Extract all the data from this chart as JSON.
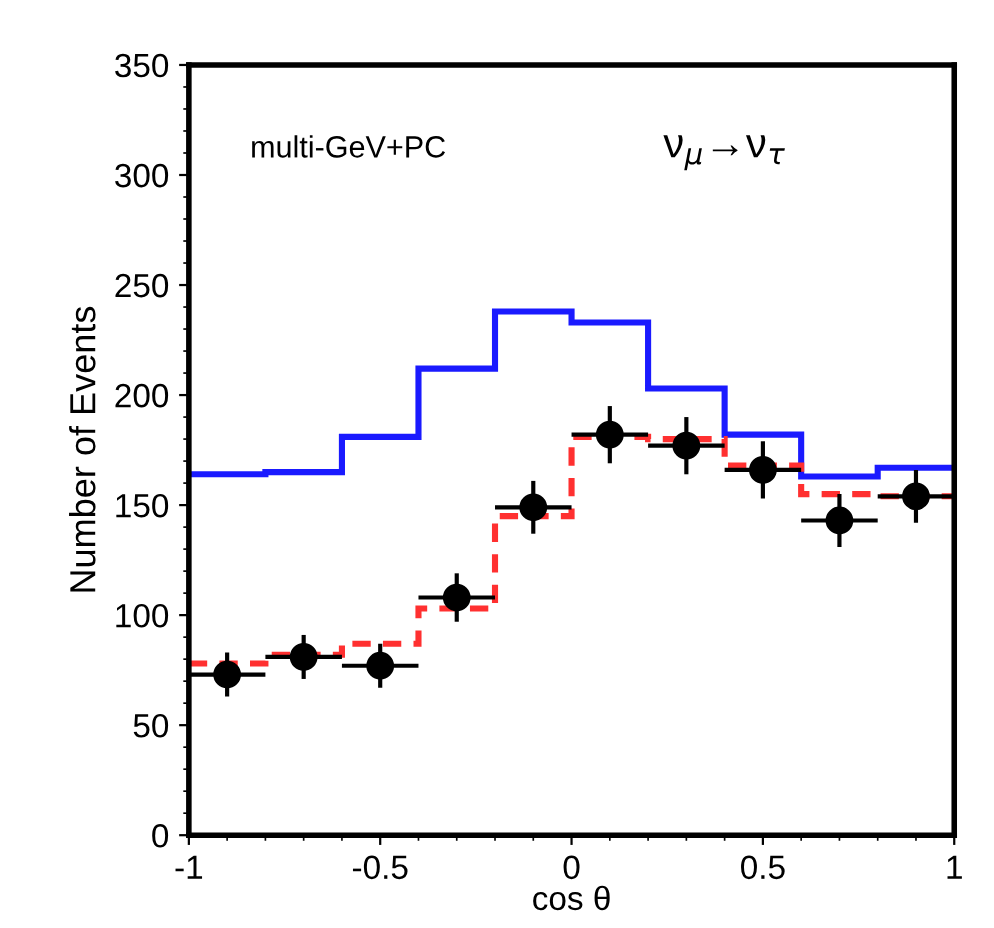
{
  "chart_data": {
    "type": "histogram",
    "xlabel": "cos θ",
    "ylabel": "Number of Events",
    "bins": [
      -1,
      -0.8,
      -0.6,
      -0.4,
      -0.2,
      0,
      0.2,
      0.4,
      0.6,
      0.8,
      1
    ],
    "series": [
      {
        "color": "#1a1aff",
        "line_style": "solid",
        "values": [
          164,
          165,
          181,
          212,
          238,
          233,
          203,
          182,
          163,
          167
        ]
      },
      {
        "color": "#ff3030",
        "line_style": "dashed",
        "values": [
          78,
          82,
          87,
          103,
          145,
          181,
          180,
          168,
          155,
          154
        ]
      },
      {
        "type": "scatter",
        "color": "#000000",
        "marker": "circle",
        "x": [
          -0.9,
          -0.7,
          -0.5,
          -0.3,
          -0.1,
          0.1,
          0.3,
          0.5,
          0.7,
          0.9
        ],
        "values": [
          73,
          81,
          77,
          108,
          149,
          182,
          177,
          166,
          143,
          154
        ],
        "errors": [
          10,
          10,
          10,
          11,
          12,
          13,
          13,
          13,
          12,
          12
        ],
        "xerrors": [
          0.1,
          0.1,
          0.1,
          0.1,
          0.1,
          0.1,
          0.1,
          0.1,
          0.1,
          0.1
        ]
      }
    ],
    "annotations": [
      "multi-GeV+PC",
      "ν$_{μ}$→ν$_{τ}$"
    ],
    "xlim": [
      -1,
      1
    ],
    "ylim": [
      0,
      350
    ],
    "xticks": [
      -1,
      -0.5,
      0,
      0.5,
      1
    ],
    "yticks": [
      0,
      50,
      100,
      150,
      200,
      250,
      300,
      350
    ],
    "grid": false,
    "legend": false
  }
}
